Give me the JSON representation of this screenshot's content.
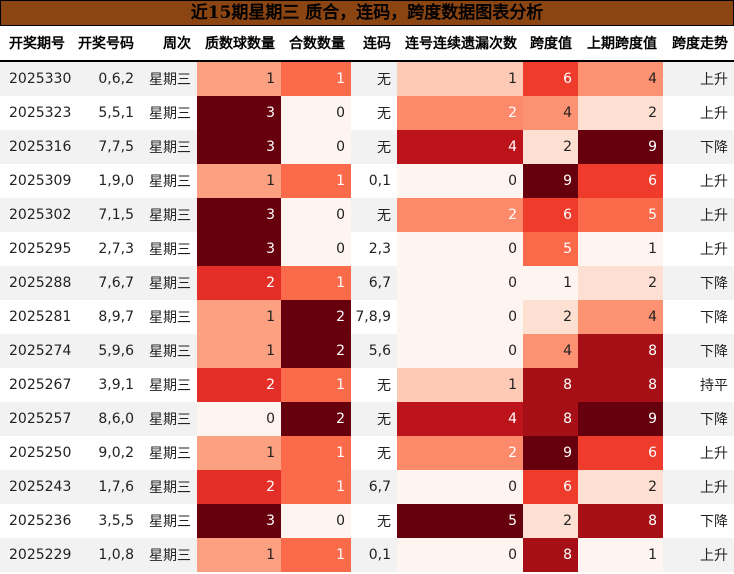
{
  "title": "近15期星期三 质合，连码，跨度数据图表分析",
  "headers": [
    "开奖期号",
    "开奖号码",
    "周次",
    "质数球数量",
    "合数数量",
    "连码",
    "连号连续遗漏次数",
    "跨度值",
    "上期跨度值",
    "跨度走势"
  ],
  "colormap": [
    "#fff5f0",
    "#fee0d2",
    "#fcbba1",
    "#fc9272",
    "#fb6a4a",
    "#ef3b2c",
    "#cb181d",
    "#a50f15",
    "#67000d"
  ],
  "rows": [
    [
      "2025330",
      "0,6,2",
      "星期三",
      "1",
      "1",
      "无",
      "1",
      "6",
      "4",
      "上升"
    ],
    [
      "2025323",
      "5,5,1",
      "星期三",
      "3",
      "0",
      "无",
      "2",
      "4",
      "2",
      "上升"
    ],
    [
      "2025316",
      "7,7,5",
      "星期三",
      "3",
      "0",
      "无",
      "4",
      "2",
      "9",
      "下降"
    ],
    [
      "2025309",
      "1,9,0",
      "星期三",
      "1",
      "1",
      "0,1",
      "0",
      "9",
      "6",
      "上升"
    ],
    [
      "2025302",
      "7,1,5",
      "星期三",
      "3",
      "0",
      "无",
      "2",
      "6",
      "5",
      "上升"
    ],
    [
      "2025295",
      "2,7,3",
      "星期三",
      "3",
      "0",
      "2,3",
      "0",
      "5",
      "1",
      "上升"
    ],
    [
      "2025288",
      "7,6,7",
      "星期三",
      "2",
      "1",
      "6,7",
      "0",
      "1",
      "2",
      "下降"
    ],
    [
      "2025281",
      "8,9,7",
      "星期三",
      "1",
      "2",
      "7,8,9",
      "0",
      "2",
      "4",
      "下降"
    ],
    [
      "2025274",
      "5,9,6",
      "星期三",
      "1",
      "2",
      "5,6",
      "0",
      "4",
      "8",
      "下降"
    ],
    [
      "2025267",
      "3,9,1",
      "星期三",
      "2",
      "1",
      "无",
      "1",
      "8",
      "8",
      "持平"
    ],
    [
      "2025257",
      "8,6,0",
      "星期三",
      "0",
      "2",
      "无",
      "4",
      "8",
      "9",
      "下降"
    ],
    [
      "2025250",
      "9,0,2",
      "星期三",
      "1",
      "1",
      "无",
      "2",
      "9",
      "6",
      "上升"
    ],
    [
      "2025243",
      "1,7,6",
      "星期三",
      "2",
      "1",
      "6,7",
      "0",
      "6",
      "2",
      "上升"
    ],
    [
      "2025236",
      "3,5,5",
      "星期三",
      "3",
      "0",
      "无",
      "5",
      "2",
      "8",
      "下降"
    ],
    [
      "2025229",
      "1,0,8",
      "星期三",
      "1",
      "1",
      "0,1",
      "0",
      "8",
      "1",
      "上升"
    ]
  ]
}
